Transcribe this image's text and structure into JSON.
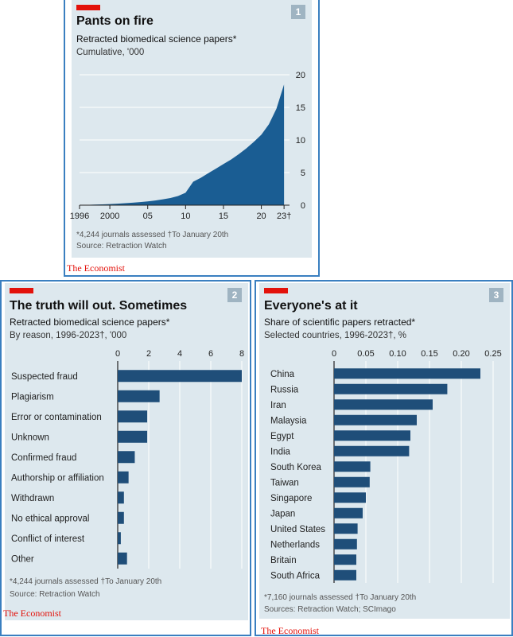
{
  "brand": "The Economist",
  "colors": {
    "accent_red": "#e3120b",
    "bar_blue": "#1f4e79",
    "area_blue": "#1a5d93",
    "card_bg": "#dde8ee"
  },
  "chart1": {
    "number": "1",
    "title": "Pants on fire",
    "subtitle": "Retracted biomedical science papers*",
    "subtitle2": "Cumulative, '000",
    "footnote": "*4,244 journals assessed   †To January 20th",
    "source": "Source: Retraction Watch"
  },
  "chart2": {
    "number": "2",
    "title": "The truth will out. Sometimes",
    "subtitle": "Retracted biomedical science papers*",
    "subtitle2": "By reason, 1996-2023†, '000",
    "footnote": "*4,244 journals assessed   †To January 20th",
    "source": "Source: Retraction Watch"
  },
  "chart3": {
    "number": "3",
    "title": "Everyone's at it",
    "subtitle": "Share of scientific papers retracted*",
    "subtitle2": "Selected countries, 1996-2023†, %",
    "footnote": "*7,160 journals assessed   †To January 20th",
    "source": "Sources: Retraction Watch; SCImago"
  },
  "chart_data": [
    {
      "type": "area",
      "title": "Pants on fire",
      "x": [
        1996,
        1997,
        1998,
        1999,
        2000,
        2001,
        2002,
        2003,
        2004,
        2005,
        2006,
        2007,
        2008,
        2009,
        2010,
        2011,
        2012,
        2013,
        2014,
        2015,
        2016,
        2017,
        2018,
        2019,
        2020,
        2021,
        2022,
        2023
      ],
      "y": [
        0.02,
        0.05,
        0.08,
        0.12,
        0.17,
        0.23,
        0.3,
        0.38,
        0.47,
        0.58,
        0.72,
        0.9,
        1.1,
        1.4,
        1.9,
        3.6,
        4.2,
        4.9,
        5.6,
        6.3,
        7.0,
        7.8,
        8.7,
        9.7,
        10.8,
        12.4,
        14.8,
        18.5
      ],
      "x_tick_labels": [
        {
          "x": 1996,
          "label": "1996"
        },
        {
          "x": 2000,
          "label": "2000"
        },
        {
          "x": 2005,
          "label": "05"
        },
        {
          "x": 2010,
          "label": "10"
        },
        {
          "x": 2015,
          "label": "15"
        },
        {
          "x": 2020,
          "label": "20"
        },
        {
          "x": 2023,
          "label": "23†"
        }
      ],
      "y_ticks": [
        0,
        5,
        10,
        15,
        20
      ],
      "ylim": [
        0,
        20
      ],
      "xlim": [
        1996,
        2023.3
      ]
    },
    {
      "type": "bar",
      "orientation": "horizontal",
      "title": "The truth will out. Sometimes",
      "categories": [
        "Suspected fraud",
        "Plagiarism",
        "Error or contamination",
        "Unknown",
        "Confirmed fraud",
        "Authorship or affiliation",
        "Withdrawn",
        "No ethical approval",
        "Conflict of interest",
        "Other"
      ],
      "values": [
        8.0,
        2.7,
        1.9,
        1.9,
        1.1,
        0.7,
        0.4,
        0.4,
        0.2,
        0.6
      ],
      "x_ticks": [
        0,
        2,
        4,
        6,
        8
      ],
      "xlim": [
        0,
        8
      ]
    },
    {
      "type": "bar",
      "orientation": "horizontal",
      "title": "Everyone's at it",
      "categories": [
        "China",
        "Russia",
        "Iran",
        "Malaysia",
        "Egypt",
        "India",
        "South Korea",
        "Taiwan",
        "Singapore",
        "Japan",
        "United States",
        "Netherlands",
        "Britain",
        "South Africa"
      ],
      "values": [
        0.23,
        0.178,
        0.155,
        0.13,
        0.12,
        0.118,
        0.057,
        0.056,
        0.05,
        0.045,
        0.037,
        0.036,
        0.035,
        0.035
      ],
      "x_ticks": [
        0,
        0.05,
        0.1,
        0.15,
        0.2,
        0.25
      ],
      "x_tick_labels": [
        "0",
        "0.05",
        "0.10",
        "0.15",
        "0.20",
        "0.25"
      ],
      "xlim": [
        0,
        0.25
      ]
    }
  ]
}
